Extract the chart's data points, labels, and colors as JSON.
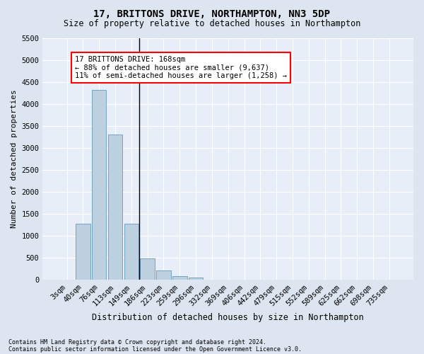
{
  "title1": "17, BRITTONS DRIVE, NORTHAMPTON, NN3 5DP",
  "title2": "Size of property relative to detached houses in Northampton",
  "xlabel": "Distribution of detached houses by size in Northampton",
  "ylabel": "Number of detached properties",
  "footnote1": "Contains HM Land Registry data © Crown copyright and database right 2024.",
  "footnote2": "Contains public sector information licensed under the Open Government Licence v3.0.",
  "annotation_line1": "17 BRITTONS DRIVE: 168sqm",
  "annotation_line2": "← 88% of detached houses are smaller (9,637)",
  "annotation_line3": "11% of semi-detached houses are larger (1,258) →",
  "bar_labels": [
    "3sqm",
    "40sqm",
    "76sqm",
    "113sqm",
    "149sqm",
    "186sqm",
    "223sqm",
    "259sqm",
    "296sqm",
    "332sqm",
    "369sqm",
    "406sqm",
    "442sqm",
    "479sqm",
    "515sqm",
    "552sqm",
    "589sqm",
    "625sqm",
    "662sqm",
    "698sqm",
    "735sqm"
  ],
  "bar_values": [
    0,
    1270,
    4320,
    3300,
    1280,
    490,
    215,
    85,
    55,
    0,
    0,
    0,
    0,
    0,
    0,
    0,
    0,
    0,
    0,
    0,
    0
  ],
  "bar_color": "#bdd0e0",
  "bar_edge_color": "#6699bb",
  "vline_x_idx": 4.5,
  "ylim": [
    0,
    5500
  ],
  "yticks": [
    0,
    500,
    1000,
    1500,
    2000,
    2500,
    3000,
    3500,
    4000,
    4500,
    5000,
    5500
  ],
  "fig_bg_color": "#dde5f0",
  "plot_bg_color": "#e8eef8",
  "title1_fontsize": 10,
  "title2_fontsize": 8.5,
  "ylabel_fontsize": 8,
  "xlabel_fontsize": 8.5,
  "tick_fontsize": 7.5,
  "annotation_fontsize": 7.5,
  "footnote_fontsize": 6
}
